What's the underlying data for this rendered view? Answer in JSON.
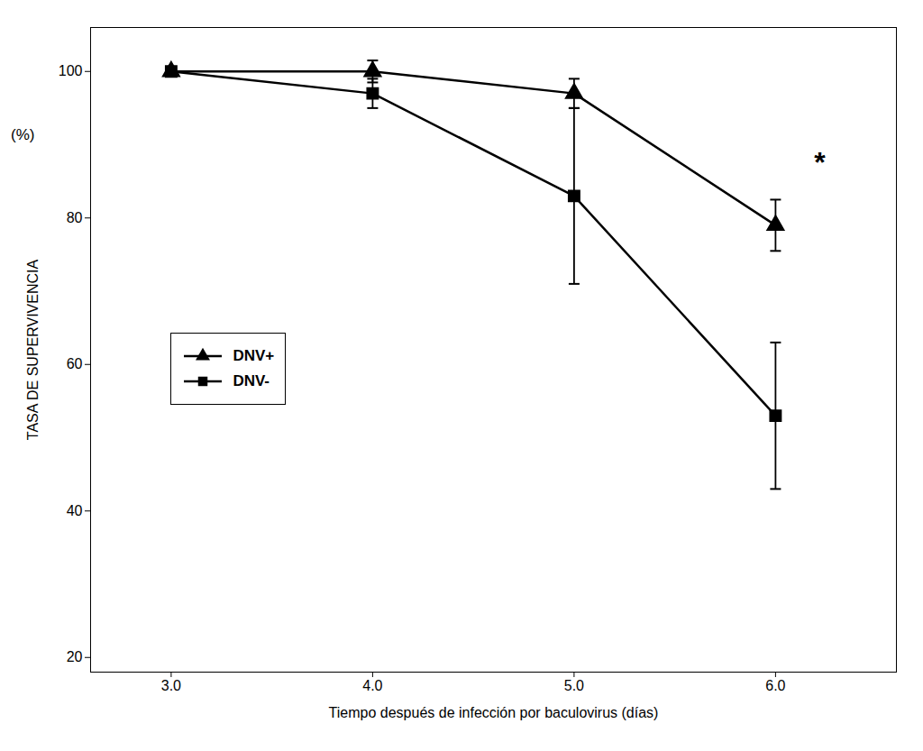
{
  "chart_data": {
    "type": "line",
    "x": [
      3,
      4,
      5,
      6
    ],
    "series": [
      {
        "name": "DNV+",
        "color": "#000000",
        "marker": "triangle",
        "line_style": "solid",
        "values": [
          100,
          100,
          97,
          79
        ],
        "yerr": [
          0,
          1.5,
          2.0,
          3.5
        ]
      },
      {
        "name": "DNV-",
        "color": "#000000",
        "marker": "square",
        "line_style": "solid",
        "values": [
          100,
          97,
          83,
          53
        ],
        "yerr": [
          0,
          2.0,
          12.0,
          10.0
        ]
      }
    ],
    "xlabel": "Tiempo después de infección por baculovirus (días)",
    "ylabel": "TASA DE SUPERVIVENCIA",
    "annotations": [
      {
        "text": "*",
        "x": 6.22,
        "y": 87.5
      },
      {
        "text": "(%)"
      }
    ],
    "xlim": [
      2.6,
      6.6
    ],
    "ylim": [
      18,
      106
    ],
    "xticks": [
      3,
      4,
      5,
      6
    ],
    "yticks": [
      20,
      40,
      60,
      80,
      100
    ],
    "grid": false,
    "legend": "left"
  }
}
